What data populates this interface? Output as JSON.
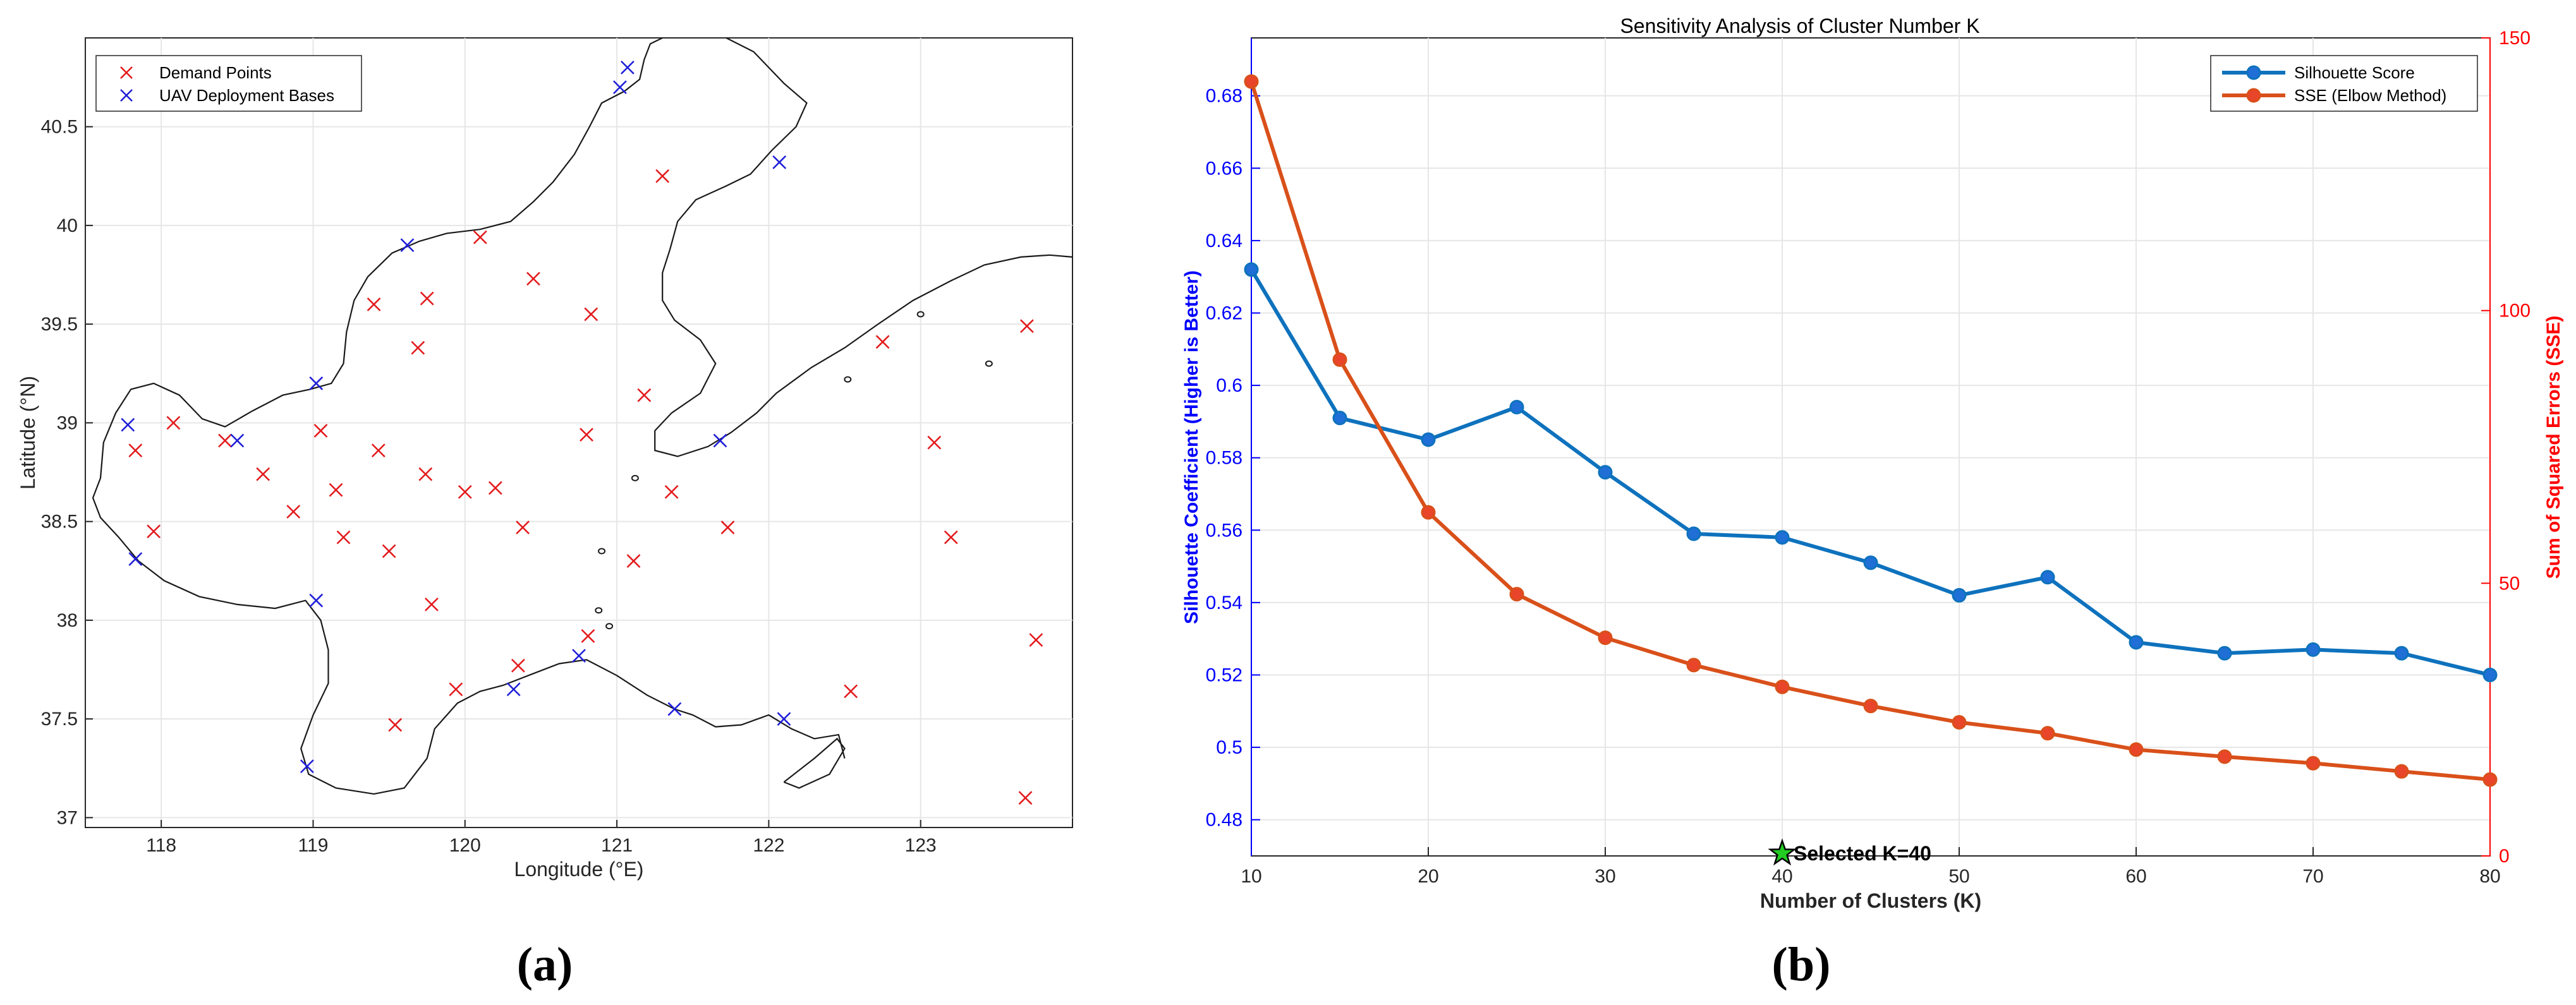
{
  "panel_a": {
    "caption": "(a)",
    "xlabel": "Longitude (°E)",
    "ylabel": "Latitude (°N)",
    "x_ticks": [
      118,
      119,
      120,
      121,
      122,
      123
    ],
    "y_ticks": [
      37,
      37.5,
      38,
      38.5,
      39,
      39.5,
      40,
      40.5
    ],
    "legend": [
      "Demand Points",
      "UAV Deployment Bases"
    ],
    "colors": {
      "demand": "#e31a1c",
      "base": "#1f1fd8",
      "coast": "#1a1a1a"
    }
  },
  "panel_b": {
    "caption": "(b)",
    "title": "Sensitivity Analysis of Cluster Number K",
    "xlabel": "Number of Clusters (K)",
    "ylabel_left": "Silhouette Coefficient (Higher is Better)",
    "ylabel_right": "Sum of Squared Errors (SSE)",
    "x_ticks": [
      10,
      20,
      30,
      40,
      50,
      60,
      70,
      80
    ],
    "y_left_ticks": [
      "0.48",
      "0.5",
      "0.52",
      "0.54",
      "0.56",
      "0.58",
      "0.6",
      "0.62",
      "0.64",
      "0.66",
      "0.68"
    ],
    "y_right_ticks": [
      "0",
      "50",
      "100",
      "150"
    ],
    "legend": [
      "Silhouette Score",
      "SSE (Elbow Method)"
    ],
    "annotation": "Selected K=40",
    "colors": {
      "silhouette": "#0e72bd",
      "sse": "#d9501a",
      "left_axis": "#0000ff",
      "right_axis": "#ff0000",
      "star": "#22cc22"
    }
  },
  "chart_data": [
    {
      "type": "scatter",
      "xlabel": "Longitude (°E)",
      "ylabel": "Latitude (°N)",
      "xlim": [
        117.5,
        124
      ],
      "ylim": [
        36.95,
        40.95
      ],
      "series": [
        {
          "name": "Demand Points",
          "marker": "x",
          "x": [
            117.83,
            117.95,
            118.08,
            118.42,
            118.67,
            118.87,
            119.05,
            119.15,
            119.2,
            119.4,
            119.43,
            119.5,
            119.54,
            119.69,
            119.74,
            119.75,
            119.78,
            119.94,
            120.0,
            120.1,
            120.2,
            120.35,
            120.38,
            120.45,
            120.8,
            120.81,
            120.83,
            121.11,
            121.18,
            121.3,
            121.36,
            121.73,
            122.54,
            122.75,
            123.09,
            123.2,
            123.69,
            123.7,
            123.76
          ],
          "y": [
            38.86,
            38.45,
            39.0,
            38.91,
            38.74,
            38.55,
            38.96,
            38.66,
            38.42,
            39.6,
            38.86,
            38.35,
            37.47,
            39.38,
            38.74,
            39.63,
            38.08,
            37.65,
            38.65,
            39.94,
            38.67,
            37.77,
            38.47,
            39.73,
            38.94,
            37.92,
            39.55,
            38.3,
            39.14,
            40.25,
            38.65,
            38.47,
            37.64,
            39.41,
            38.9,
            38.42,
            37.1,
            39.49,
            37.9
          ]
        },
        {
          "name": "UAV Deployment Bases",
          "marker": "x",
          "x": [
            117.78,
            117.83,
            118.5,
            118.96,
            119.02,
            119.02,
            119.62,
            120.32,
            120.75,
            121.02,
            121.07,
            121.38,
            121.68,
            122.07,
            122.1
          ],
          "y": [
            38.99,
            38.31,
            38.91,
            37.26,
            38.1,
            39.2,
            39.9,
            37.65,
            37.82,
            40.7,
            40.8,
            37.55,
            38.91,
            40.32,
            37.5
          ]
        }
      ]
    },
    {
      "type": "line",
      "title": "Sensitivity Analysis of Cluster Number K",
      "xlabel": "Number of Clusters (K)",
      "ylabel_left": "Silhouette Coefficient (Higher is Better)",
      "ylabel_right": "Sum of Squared Errors (SSE)",
      "x": [
        10,
        15,
        20,
        25,
        30,
        35,
        40,
        45,
        50,
        55,
        60,
        65,
        70,
        75,
        80
      ],
      "xlim": [
        10,
        80
      ],
      "ylim_left": [
        0.47,
        0.696
      ],
      "ylim_right": [
        0,
        150
      ],
      "series": [
        {
          "name": "Silhouette Score",
          "axis": "left",
          "values": [
            0.632,
            0.591,
            0.585,
            0.594,
            0.576,
            0.559,
            0.558,
            0.551,
            0.542,
            0.547,
            0.529,
            0.526,
            0.527,
            0.526,
            0.52
          ]
        },
        {
          "name": "SSE (Elbow Method)",
          "axis": "right",
          "values": [
            142,
            91,
            63,
            48,
            40,
            35,
            31,
            27.5,
            24.5,
            22.5,
            19.5,
            18.2,
            17,
            15.5,
            14
          ]
        }
      ],
      "annotation": {
        "x": 40,
        "y_left": 0.47,
        "text": "Selected K=40"
      },
      "legend_position": "top-right",
      "grid": true
    }
  ]
}
